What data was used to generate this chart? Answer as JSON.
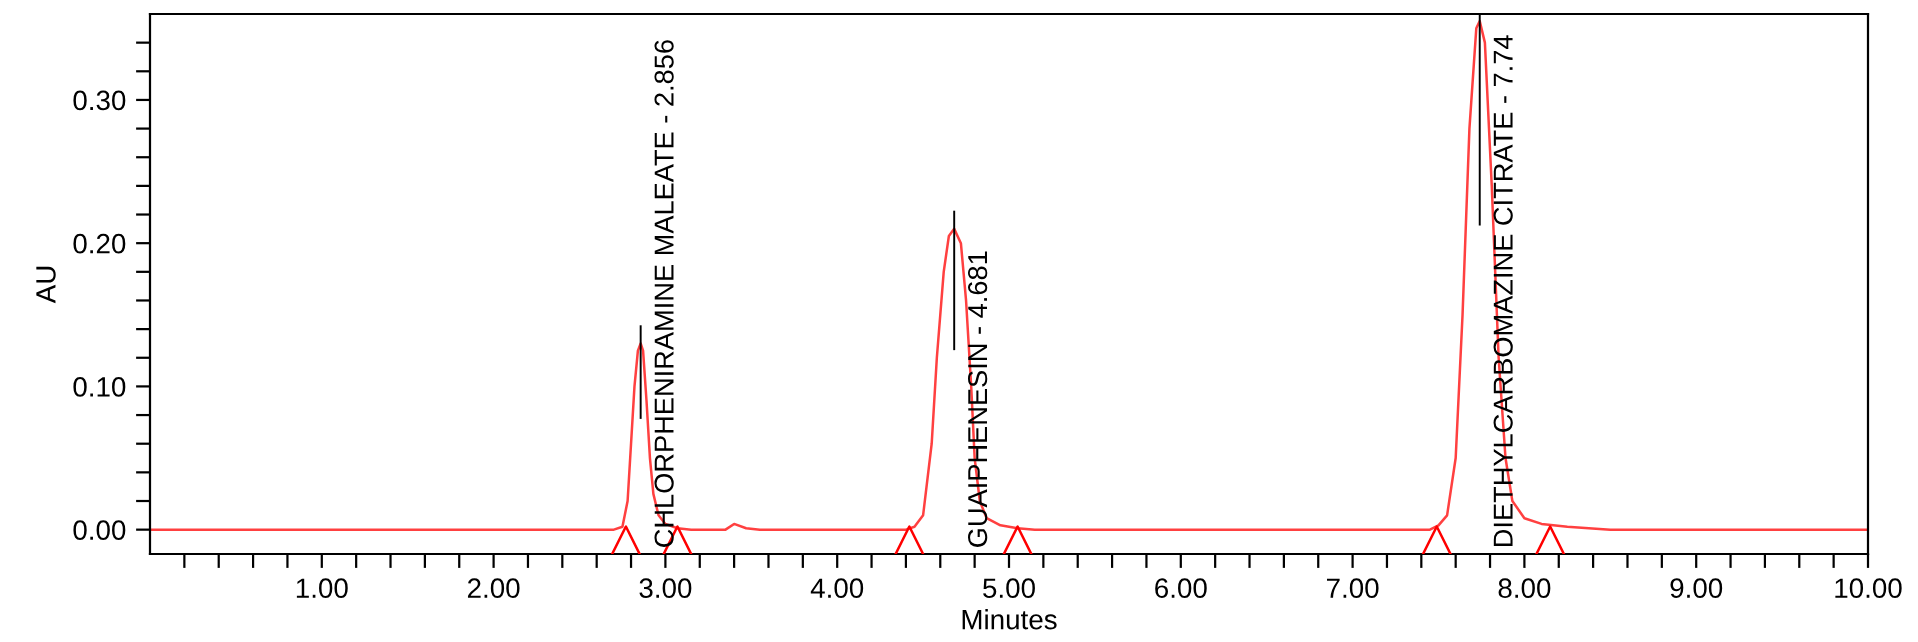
{
  "chart_data": {
    "type": "line",
    "xlabel": "Minutes",
    "ylabel": "AU",
    "xlim": [
      0,
      10
    ],
    "ylim": [
      -0.017,
      0.36
    ],
    "xticks": [
      {
        "value": 0.2,
        "label": null
      },
      {
        "value": 0.4,
        "label": null
      },
      {
        "value": 0.6,
        "label": null
      },
      {
        "value": 0.8,
        "label": null
      },
      {
        "value": 1,
        "label": "1.00"
      },
      {
        "value": 1.2,
        "label": null
      },
      {
        "value": 1.4,
        "label": null
      },
      {
        "value": 1.6,
        "label": null
      },
      {
        "value": 1.8,
        "label": null
      },
      {
        "value": 2,
        "label": "2.00"
      },
      {
        "value": 2.2,
        "label": null
      },
      {
        "value": 2.4,
        "label": null
      },
      {
        "value": 2.6,
        "label": null
      },
      {
        "value": 2.8,
        "label": null
      },
      {
        "value": 3,
        "label": "3.00"
      },
      {
        "value": 3.2,
        "label": null
      },
      {
        "value": 3.4,
        "label": null
      },
      {
        "value": 3.6,
        "label": null
      },
      {
        "value": 3.8,
        "label": null
      },
      {
        "value": 4,
        "label": "4.00"
      },
      {
        "value": 4.2,
        "label": null
      },
      {
        "value": 4.4,
        "label": null
      },
      {
        "value": 4.6,
        "label": null
      },
      {
        "value": 4.8,
        "label": null
      },
      {
        "value": 5,
        "label": "5.00"
      },
      {
        "value": 5.2,
        "label": null
      },
      {
        "value": 5.4,
        "label": null
      },
      {
        "value": 5.6,
        "label": null
      },
      {
        "value": 5.8,
        "label": null
      },
      {
        "value": 6,
        "label": "6.00"
      },
      {
        "value": 6.2,
        "label": null
      },
      {
        "value": 6.4,
        "label": null
      },
      {
        "value": 6.6,
        "label": null
      },
      {
        "value": 6.8,
        "label": null
      },
      {
        "value": 7,
        "label": "7.00"
      },
      {
        "value": 7.2,
        "label": null
      },
      {
        "value": 7.4,
        "label": null
      },
      {
        "value": 7.6,
        "label": null
      },
      {
        "value": 7.8,
        "label": null
      },
      {
        "value": 8,
        "label": "8.00"
      },
      {
        "value": 8.2,
        "label": null
      },
      {
        "value": 8.4,
        "label": null
      },
      {
        "value": 8.6,
        "label": null
      },
      {
        "value": 8.8,
        "label": null
      },
      {
        "value": 9,
        "label": "9.00"
      },
      {
        "value": 9.2,
        "label": null
      },
      {
        "value": 9.4,
        "label": null
      },
      {
        "value": 9.6,
        "label": null
      },
      {
        "value": 9.8,
        "label": null
      },
      {
        "value": 10,
        "label": "10.00"
      }
    ],
    "yticks": [
      {
        "value": 0,
        "label": "0.00"
      },
      {
        "value": 0.02,
        "label": null
      },
      {
        "value": 0.04,
        "label": null
      },
      {
        "value": 0.06,
        "label": null
      },
      {
        "value": 0.08,
        "label": null
      },
      {
        "value": 0.1,
        "label": "0.10"
      },
      {
        "value": 0.12,
        "label": null
      },
      {
        "value": 0.14,
        "label": null
      },
      {
        "value": 0.16,
        "label": null
      },
      {
        "value": 0.18,
        "label": null
      },
      {
        "value": 0.2,
        "label": "0.20"
      },
      {
        "value": 0.22,
        "label": null
      },
      {
        "value": 0.24,
        "label": null
      },
      {
        "value": 0.26,
        "label": null
      },
      {
        "value": 0.28,
        "label": null
      },
      {
        "value": 0.3,
        "label": "0.30"
      },
      {
        "value": 0.32,
        "label": null
      },
      {
        "value": 0.34,
        "label": null
      }
    ],
    "grid": false,
    "legend": false,
    "series": [
      {
        "color": "#ff4040",
        "marker": "none",
        "x": [
          0,
          2.7,
          2.75,
          2.78,
          2.8,
          2.82,
          2.84,
          2.856,
          2.87,
          2.89,
          2.91,
          2.93,
          2.96,
          3.0,
          3.07,
          3.15,
          3.35,
          3.4,
          3.47,
          3.55,
          4.4,
          4.45,
          4.5,
          4.55,
          4.58,
          4.62,
          4.65,
          4.681,
          4.72,
          4.75,
          4.78,
          4.8,
          4.83,
          4.87,
          4.95,
          5.05,
          5.15,
          7.45,
          7.5,
          7.55,
          7.6,
          7.64,
          7.68,
          7.72,
          7.74,
          7.77,
          7.81,
          7.85,
          7.89,
          7.93,
          8.0,
          8.1,
          8.25,
          8.5,
          10
        ],
        "values": [
          0,
          0,
          0.002,
          0.02,
          0.06,
          0.1,
          0.125,
          0.13,
          0.125,
          0.09,
          0.05,
          0.025,
          0.01,
          0.004,
          0.001,
          0,
          0,
          0.004,
          0.001,
          0,
          0,
          0.002,
          0.01,
          0.06,
          0.12,
          0.18,
          0.205,
          0.21,
          0.2,
          0.16,
          0.1,
          0.05,
          0.02,
          0.008,
          0.003,
          0.001,
          0,
          0,
          0.003,
          0.01,
          0.05,
          0.15,
          0.28,
          0.35,
          0.355,
          0.34,
          0.24,
          0.12,
          0.05,
          0.02,
          0.008,
          0.004,
          0.002,
          0,
          0
        ]
      },
      {
        "type": "scatter",
        "color": "#ff0000",
        "marker": "triangle",
        "x": [
          2.77,
          3.07,
          4.42,
          5.05,
          7.49,
          8.15
        ],
        "values": [
          -0.008,
          -0.008,
          -0.008,
          -0.008,
          -0.008,
          -0.008
        ]
      }
    ],
    "annotations": [
      {
        "text": "CHLORPHENIRAMINE MALEATE - 2.856",
        "x": 2.856,
        "y": 0.13
      },
      {
        "text": "GUAIPHENESIN - 4.681",
        "x": 4.681,
        "y": 0.21
      },
      {
        "text": "DIETHYLCARBOMAZINE CITRATE - 7.74",
        "x": 7.74,
        "y": 0.355
      }
    ]
  }
}
